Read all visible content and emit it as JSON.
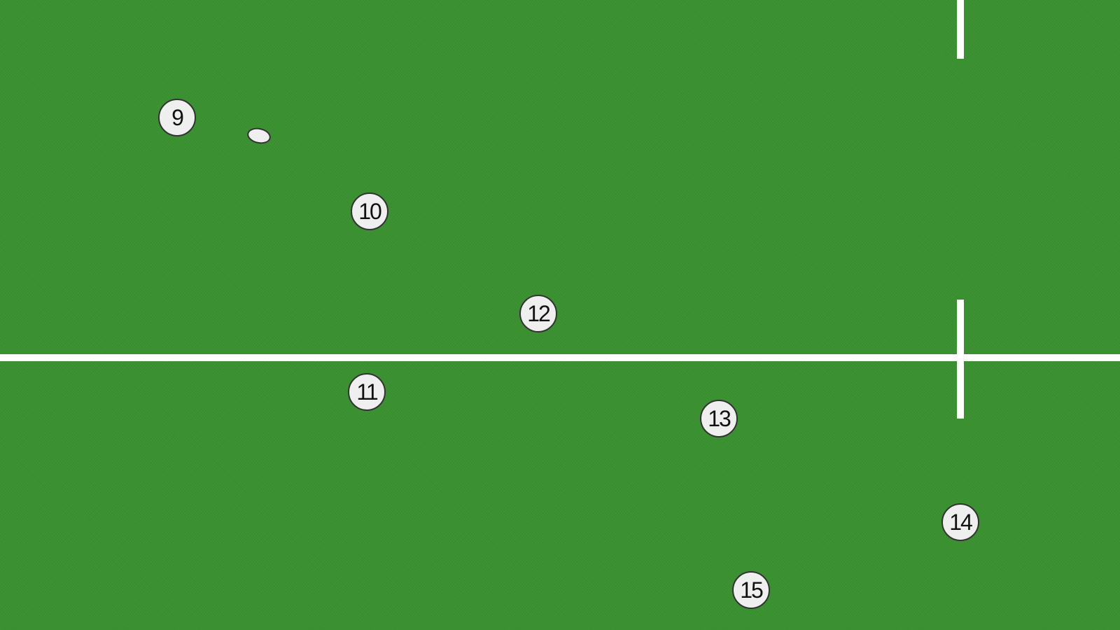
{
  "pitch": {
    "surface_color": "#3a9130",
    "line_color": "#ffffff"
  },
  "players": [
    {
      "number": "9"
    },
    {
      "number": "10"
    },
    {
      "number": "12"
    },
    {
      "number": "11"
    },
    {
      "number": "13"
    },
    {
      "number": "14"
    },
    {
      "number": "15"
    }
  ],
  "ball": {
    "icon": "rugby-ball-icon"
  }
}
